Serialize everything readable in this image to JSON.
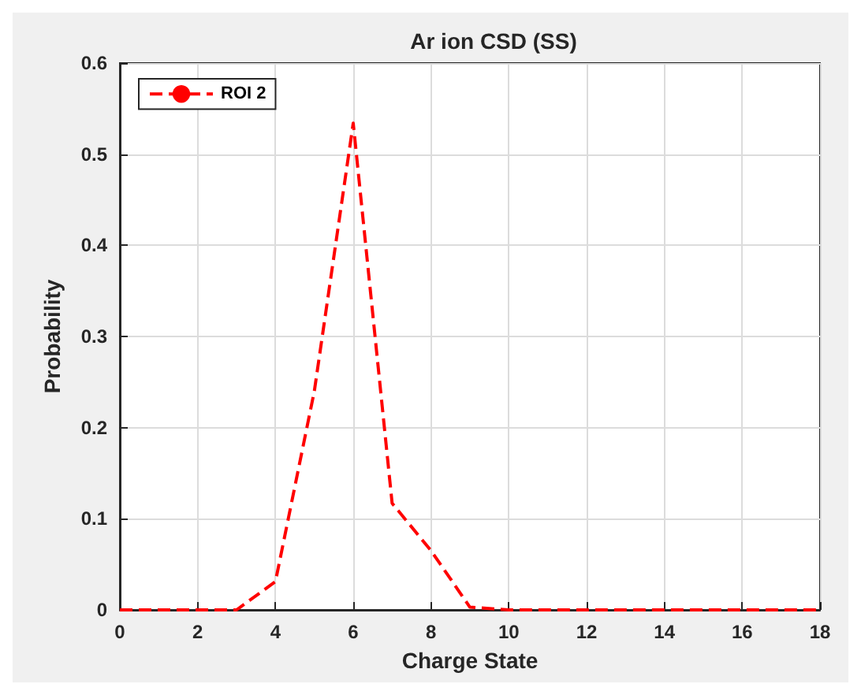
{
  "chart_data": {
    "type": "line",
    "title": "Ar ion CSD (SS)",
    "xlabel": "Charge State",
    "ylabel": "Probability",
    "x": [
      0,
      1,
      2,
      3,
      4,
      5,
      6,
      7,
      8,
      9,
      10,
      11,
      12,
      13,
      14,
      15,
      16,
      17,
      18
    ],
    "series": [
      {
        "name": "ROI 2",
        "color": "#ff0000",
        "values": [
          0,
          0,
          0,
          0,
          0.031,
          0.24,
          0.534,
          0.117,
          0.065,
          0.003,
          0,
          0,
          0,
          0,
          0,
          0,
          0,
          0,
          0
        ]
      }
    ],
    "xlim": [
      0,
      18
    ],
    "xticks": [
      0,
      2,
      4,
      6,
      8,
      10,
      12,
      14,
      16,
      18
    ],
    "ylim": [
      0,
      0.6
    ],
    "yticks": [
      0,
      0.1,
      0.2,
      0.3,
      0.4,
      0.5,
      0.6
    ],
    "grid": true,
    "legend": "top left",
    "line_style": "dashed",
    "marker": "none"
  }
}
